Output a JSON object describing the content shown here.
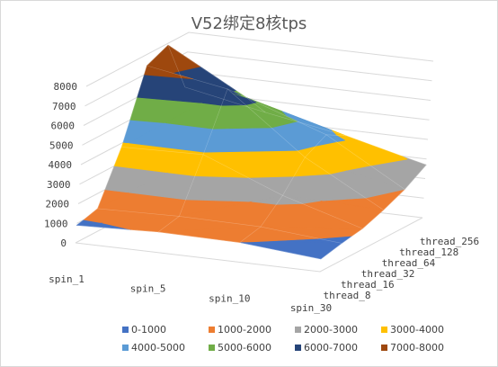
{
  "chart_data": {
    "type": "surface",
    "title": "V52绑定8核tps",
    "xlabel": "",
    "ylabel": "",
    "zlabel": "",
    "x_categories": [
      "spin_1",
      "spin_5",
      "spin_10",
      "spin_30"
    ],
    "y_categories": [
      "thread_8",
      "thread_16",
      "thread_32",
      "thread_64",
      "thread_128",
      "thread_256"
    ],
    "z_ticks": [
      0,
      1000,
      2000,
      3000,
      4000,
      5000,
      6000,
      7000,
      8000
    ],
    "zlim": [
      0,
      8000
    ],
    "values": [
      [
        900,
        1200,
        3800,
        7400,
        7900,
        5200
      ],
      [
        1050,
        1300,
        3900,
        6700,
        5700,
        4400
      ],
      [
        1000,
        1250,
        2300,
        3700,
        4300,
        3700
      ],
      [
        650,
        900,
        1100,
        1500,
        2000,
        2700
      ]
    ],
    "bands": [
      {
        "name": "0-1000",
        "color": "#4472C4"
      },
      {
        "name": "1000-2000",
        "color": "#ED7D31"
      },
      {
        "name": "2000-3000",
        "color": "#A5A5A5"
      },
      {
        "name": "3000-4000",
        "color": "#FFC000"
      },
      {
        "name": "4000-5000",
        "color": "#5B9BD5"
      },
      {
        "name": "5000-6000",
        "color": "#70AD47"
      },
      {
        "name": "6000-7000",
        "color": "#264478"
      },
      {
        "name": "7000-8000",
        "color": "#9E480E"
      }
    ],
    "legend_position": "bottom",
    "grid": true
  }
}
